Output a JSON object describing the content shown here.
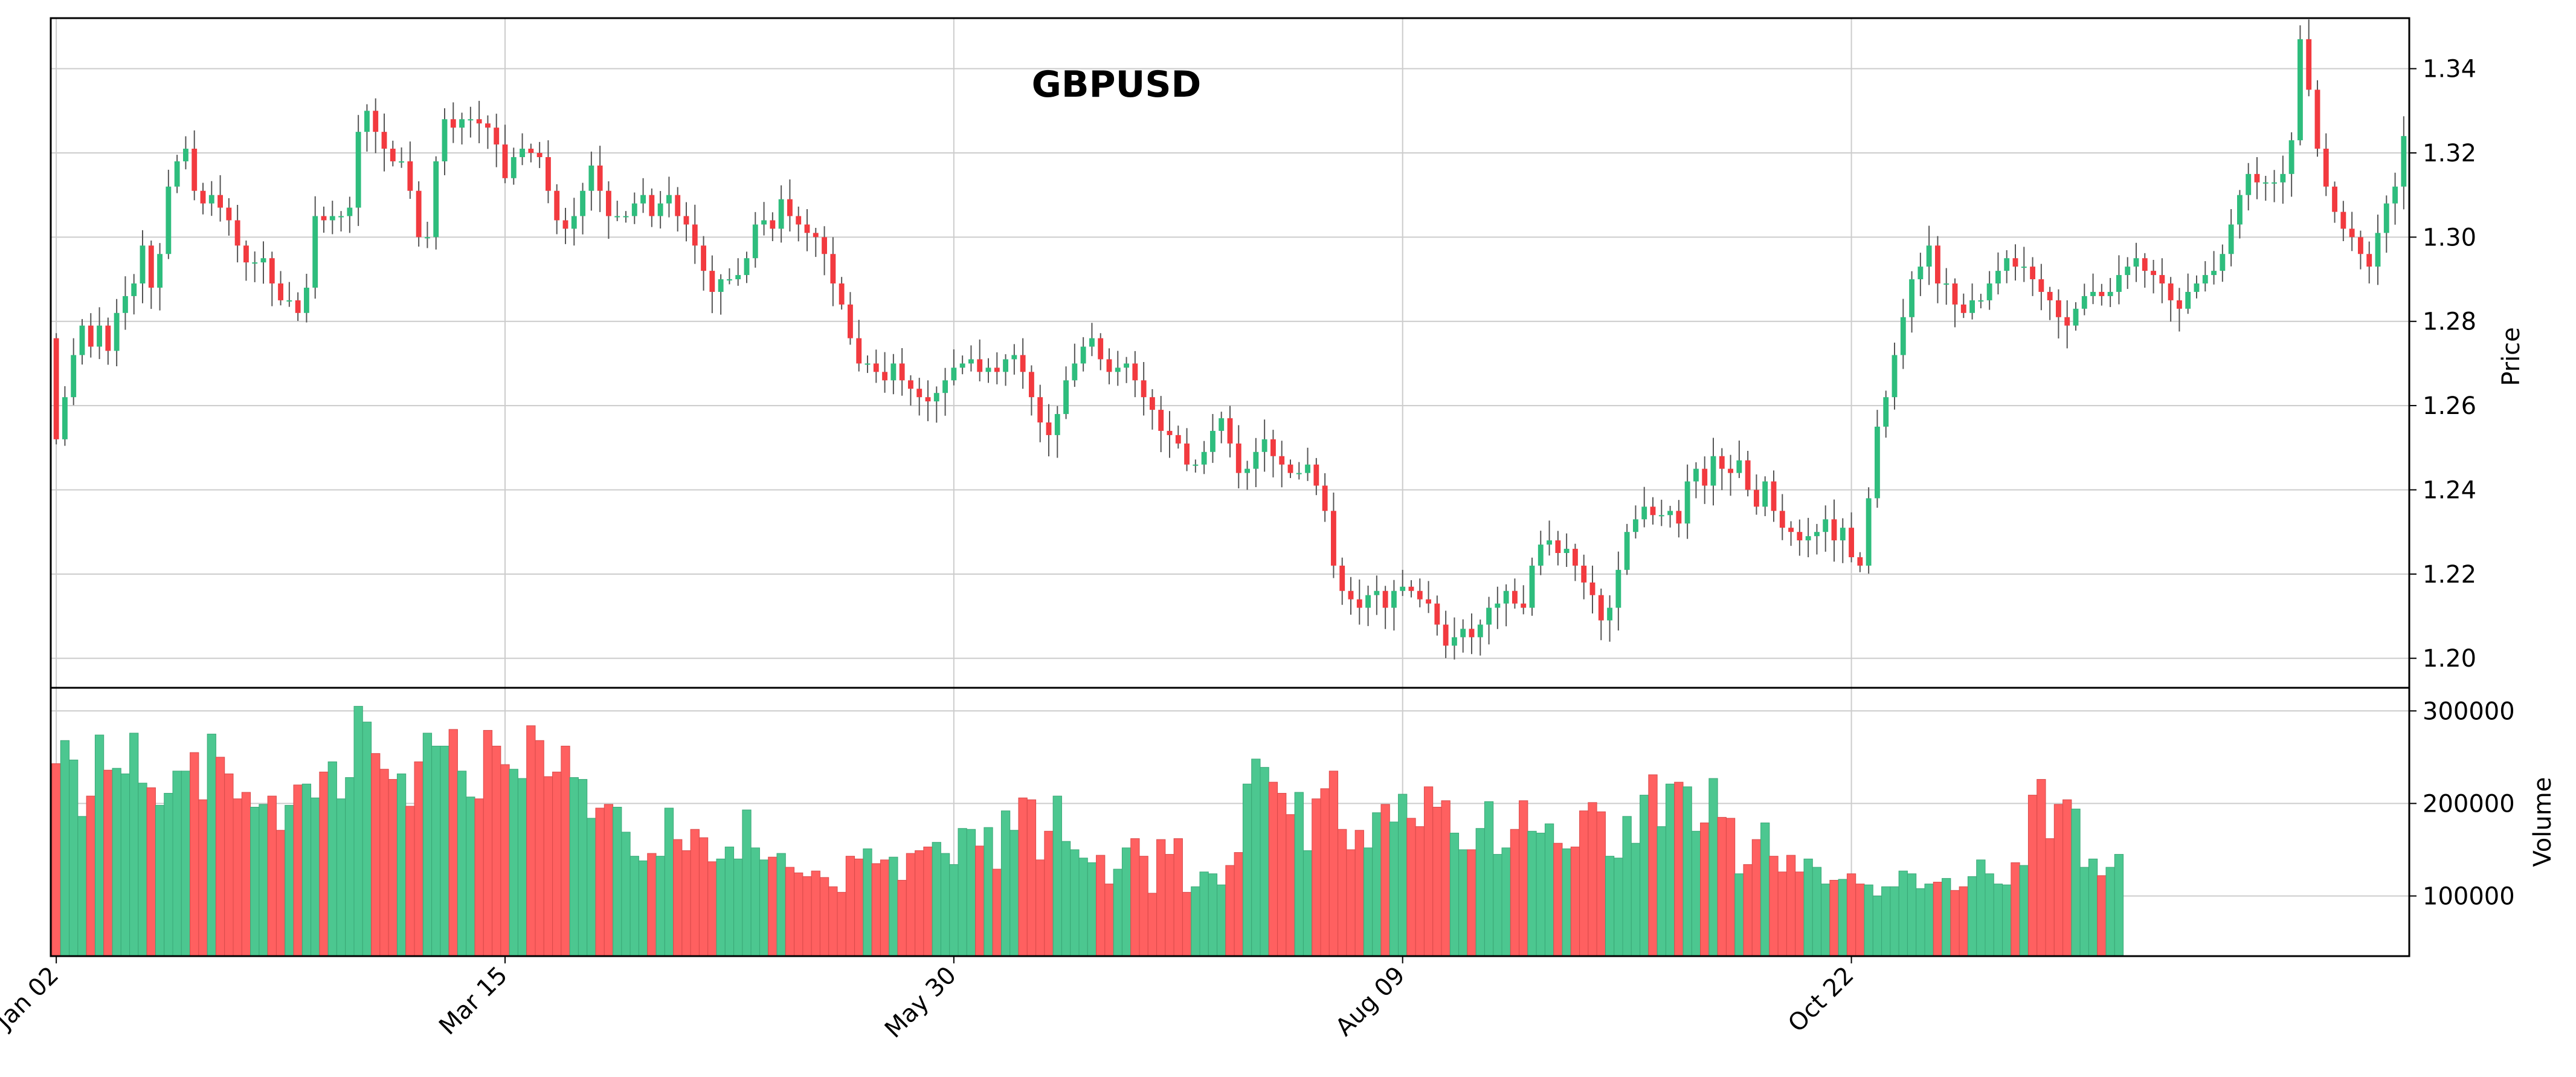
{
  "chart_data": {
    "type": "candlestick",
    "title": "GBPUSD",
    "price_panel": {
      "ylabel": "Price",
      "ylim": [
        1.193,
        1.352
      ],
      "yticks": [
        "1.20",
        "1.22",
        "1.24",
        "1.26",
        "1.28",
        "1.30",
        "1.32",
        "1.34"
      ],
      "ytick_values": [
        1.2,
        1.22,
        1.24,
        1.26,
        1.28,
        1.3,
        1.32,
        1.34
      ]
    },
    "volume_panel": {
      "ylabel": "Volume",
      "ylim": [
        35000,
        325000
      ],
      "yticks": [
        "100000",
        "200000",
        "300000"
      ],
      "ytick_values": [
        100000,
        200000,
        300000
      ]
    },
    "xticks": [
      {
        "label": "Jan 02",
        "index": 0
      },
      {
        "label": "Mar 15",
        "index": 52
      },
      {
        "label": "May 30",
        "index": 104
      },
      {
        "label": "Aug 09",
        "index": 156
      },
      {
        "label": "Oct 22",
        "index": 208
      }
    ],
    "grid": true,
    "colors": {
      "up": "#2ebd7d",
      "down": "#f23a3f",
      "up_volume": "#4cc790",
      "down_volume": "#ff6060",
      "wick": "#555555",
      "grid": "#cccccc",
      "axis": "#000000"
    },
    "closes": [
      1.252,
      1.262,
      1.272,
      1.279,
      1.274,
      1.279,
      1.273,
      1.282,
      1.286,
      1.289,
      1.298,
      1.288,
      1.296,
      1.312,
      1.318,
      1.321,
      1.311,
      1.308,
      1.31,
      1.307,
      1.304,
      1.298,
      1.294,
      1.294,
      1.295,
      1.289,
      1.285,
      1.285,
      1.282,
      1.288,
      1.305,
      1.304,
      1.305,
      1.305,
      1.307,
      1.325,
      1.33,
      1.325,
      1.321,
      1.318,
      1.318,
      1.311,
      1.3,
      1.3,
      1.318,
      1.328,
      1.326,
      1.328,
      1.328,
      1.327,
      1.326,
      1.322,
      1.314,
      1.319,
      1.321,
      1.32,
      1.319,
      1.311,
      1.304,
      1.302,
      1.305,
      1.311,
      1.317,
      1.311,
      1.305,
      1.305,
      1.305,
      1.308,
      1.31,
      1.305,
      1.308,
      1.31,
      1.305,
      1.303,
      1.298,
      1.292,
      1.287,
      1.29,
      1.29,
      1.291,
      1.295,
      1.303,
      1.304,
      1.302,
      1.309,
      1.305,
      1.303,
      1.301,
      1.3,
      1.296,
      1.289,
      1.284,
      1.276,
      1.27,
      1.27,
      1.268,
      1.266,
      1.27,
      1.266,
      1.264,
      1.262,
      1.261,
      1.263,
      1.266,
      1.269,
      1.27,
      1.271,
      1.268,
      1.269,
      1.268,
      1.271,
      1.272,
      1.268,
      1.262,
      1.256,
      1.253,
      1.258,
      1.266,
      1.27,
      1.274,
      1.276,
      1.271,
      1.268,
      1.269,
      1.27,
      1.266,
      1.262,
      1.259,
      1.254,
      1.253,
      1.251,
      1.246,
      1.246,
      1.249,
      1.254,
      1.257,
      1.251,
      1.244,
      1.245,
      1.249,
      1.252,
      1.248,
      1.246,
      1.244,
      1.244,
      1.246,
      1.241,
      1.235,
      1.222,
      1.216,
      1.214,
      1.212,
      1.215,
      1.216,
      1.212,
      1.216,
      1.217,
      1.216,
      1.214,
      1.213,
      1.208,
      1.203,
      1.205,
      1.207,
      1.205,
      1.208,
      1.212,
      1.213,
      1.216,
      1.213,
      1.212,
      1.222,
      1.227,
      1.228,
      1.225,
      1.226,
      1.222,
      1.218,
      1.215,
      1.209,
      1.212,
      1.221,
      1.23,
      1.233,
      1.236,
      1.234,
      1.234,
      1.235,
      1.232,
      1.242,
      1.245,
      1.241,
      1.248,
      1.245,
      1.244,
      1.247,
      1.24,
      1.236,
      1.242,
      1.235,
      1.231,
      1.23,
      1.228,
      1.229,
      1.23,
      1.233,
      1.228,
      1.231,
      1.224,
      1.222,
      1.238,
      1.255,
      1.262,
      1.272,
      1.281,
      1.29,
      1.293,
      1.298,
      1.289,
      1.289,
      1.284,
      1.282,
      1.285,
      1.285,
      1.289,
      1.292,
      1.295,
      1.293,
      1.293,
      1.29,
      1.287,
      1.285,
      1.281,
      1.279,
      1.283,
      1.286,
      1.287,
      1.286,
      1.287,
      1.291,
      1.293,
      1.295,
      1.292,
      1.291,
      1.289,
      1.285,
      1.283,
      1.287,
      1.289,
      1.291,
      1.292,
      1.296,
      1.303,
      1.31,
      1.315,
      1.313,
      1.313,
      1.313,
      1.315,
      1.323,
      1.347,
      1.335,
      1.321,
      1.312,
      1.306,
      1.302,
      1.3,
      1.296,
      1.293,
      1.301,
      1.308,
      1.312,
      1.324
    ],
    "volumes": [
      243000,
      268000,
      247000,
      186000,
      208000,
      274000,
      236000,
      238000,
      232000,
      276000,
      222000,
      217000,
      198000,
      211000,
      235000,
      235000,
      255000,
      204000,
      275000,
      250000,
      232000,
      205000,
      212000,
      196000,
      199000,
      208000,
      171000,
      198000,
      220000,
      221000,
      206000,
      234000,
      245000,
      205000,
      228000,
      305000,
      288000,
      254000,
      237000,
      226000,
      232000,
      197000,
      245000,
      276000,
      262000,
      262000,
      280000,
      235000,
      207000,
      205000,
      279000,
      262000,
      242000,
      237000,
      227000,
      284000,
      268000,
      229000,
      234000,
      262000,
      228000,
      226000,
      184000,
      195000,
      199000,
      196000,
      169000,
      143000,
      138000,
      146000,
      143000,
      195000,
      161000,
      149000,
      172000,
      163000,
      137000,
      140000,
      153000,
      140000,
      193000,
      152000,
      139000,
      142000,
      146000,
      131000,
      125000,
      121000,
      127000,
      120000,
      110000,
      104000,
      143000,
      140000,
      151000,
      135000,
      139000,
      142000,
      117000,
      146000,
      149000,
      153000,
      158000,
      146000,
      134000,
      173000,
      172000,
      154000,
      174000,
      129000,
      192000,
      171000,
      206000,
      204000,
      139000,
      170000,
      208000,
      159000,
      150000,
      141000,
      136000,
      144000,
      113000,
      129000,
      152000,
      162000,
      143000,
      103000,
      161000,
      145000,
      162000,
      104000,
      110000,
      126000,
      124000,
      112000,
      133000,
      147000,
      221000,
      248000,
      239000,
      223000,
      211000,
      188000,
      212000,
      149000,
      205000,
      216000,
      235000,
      172000,
      150000,
      171000,
      152000,
      190000,
      199000,
      180000,
      210000,
      184000,
      175000,
      218000,
      196000,
      203000,
      168000,
      150000,
      150000,
      173000,
      202000,
      145000,
      152000,
      172000,
      203000,
      170000,
      168000,
      178000,
      157000,
      151000,
      153000,
      192000,
      201000,
      191000,
      143000,
      141000,
      186000,
      157000,
      209000,
      231000,
      175000,
      221000,
      223000,
      218000,
      170000,
      179000,
      227000,
      185000,
      184000,
      124000,
      134000,
      161000,
      179000,
      143000,
      126000,
      144000,
      126000,
      140000,
      131000,
      113000,
      117000,
      118000,
      124000,
      113000,
      112000,
      100000,
      110000,
      110000,
      127000,
      124000,
      108000,
      113000,
      115000,
      119000,
      106000,
      110000,
      121000,
      139000,
      124000,
      113000,
      112000,
      136000,
      133000,
      209000,
      226000,
      162000,
      199000,
      204000,
      194000,
      131000,
      140000,
      122000,
      131000,
      145000
    ]
  }
}
